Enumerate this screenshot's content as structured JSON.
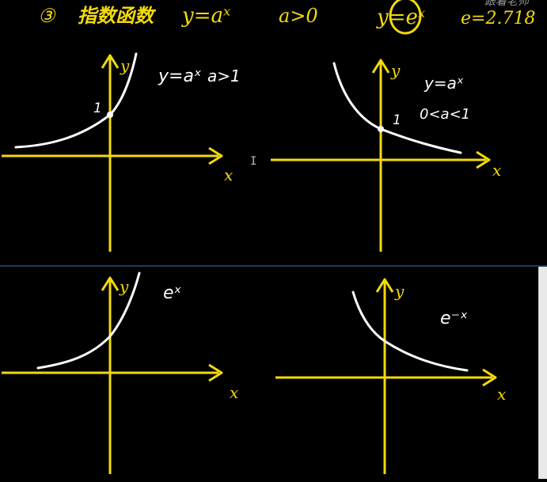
{
  "header": {
    "circled_number": "③",
    "title": "指数函数",
    "formula": "y=aˣ",
    "condition": "a>0",
    "natural": "y=eˣ",
    "e_value": "e=2.718",
    "watermark": "跟着老师"
  },
  "graphs": [
    {
      "id": "g1",
      "x_label": "x",
      "y_label": "y",
      "caption_1": "y=aˣ",
      "caption_2": "a>1",
      "point_label": "1"
    },
    {
      "id": "g2",
      "x_label": "x",
      "y_label": "y",
      "caption_1": "y=aˣ",
      "caption_2": "0<a<1",
      "point_label": "1"
    },
    {
      "id": "g3",
      "x_label": "x",
      "y_label": "y",
      "caption_1": "eˣ"
    },
    {
      "id": "g4",
      "x_label": "x",
      "y_label": "y",
      "caption_1": "e⁻ˣ"
    }
  ],
  "colors": {
    "background": "#000000",
    "axis": "#f3da0b",
    "curve": "#ffffff",
    "header": "#f3da0b"
  }
}
